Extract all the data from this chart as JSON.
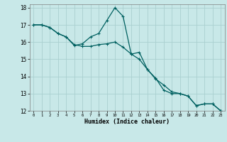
{
  "xlabel": "Humidex (Indice chaleur)",
  "bg_color": "#c8e8e8",
  "grid_color": "#aacfcf",
  "line_color": "#006060",
  "xlim": [
    -0.5,
    23.5
  ],
  "ylim": [
    12,
    18.2
  ],
  "yticks": [
    12,
    13,
    14,
    15,
    16,
    17,
    18
  ],
  "xticks": [
    0,
    1,
    2,
    3,
    4,
    5,
    6,
    7,
    8,
    9,
    10,
    11,
    12,
    13,
    14,
    15,
    16,
    17,
    18,
    19,
    20,
    21,
    22,
    23
  ],
  "line1_x": [
    0,
    1,
    2,
    3,
    4,
    5,
    6,
    7,
    8,
    9,
    10,
    11,
    12,
    13,
    14,
    15,
    16,
    17,
    18,
    19,
    20,
    21,
    22,
    23
  ],
  "line1_y": [
    17.0,
    17.0,
    16.85,
    16.5,
    16.3,
    15.8,
    15.9,
    16.3,
    16.5,
    17.25,
    18.0,
    17.5,
    15.3,
    15.4,
    14.4,
    13.9,
    13.2,
    13.0,
    13.0,
    12.85,
    12.3,
    12.4,
    12.4,
    12.0
  ],
  "line2_x": [
    0,
    1,
    2,
    3,
    4,
    5,
    6,
    7,
    8,
    9,
    10,
    11,
    12,
    13,
    14,
    15,
    16,
    17,
    18,
    19,
    20,
    21,
    22,
    23
  ],
  "line2_y": [
    17.0,
    17.0,
    16.85,
    16.5,
    16.3,
    15.85,
    15.75,
    15.75,
    15.85,
    15.9,
    16.0,
    15.7,
    15.3,
    15.0,
    14.4,
    13.85,
    13.5,
    13.1,
    13.0,
    12.85,
    12.3,
    12.4,
    12.4,
    12.0
  ]
}
